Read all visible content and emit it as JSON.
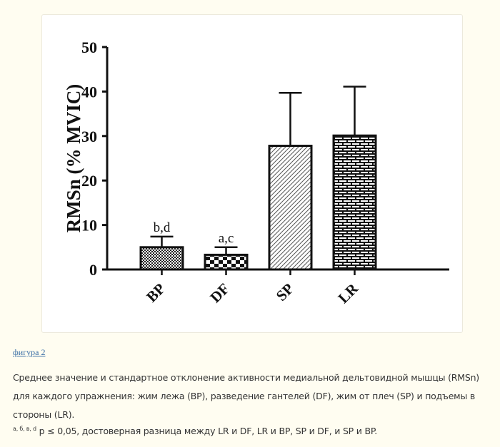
{
  "chart_data": {
    "type": "bar",
    "categories": [
      "BP",
      "DF",
      "SP",
      "LR"
    ],
    "values": [
      5.0,
      3.3,
      27.8,
      30.1
    ],
    "error_sd": [
      2.4,
      1.7,
      11.9,
      11.0
    ],
    "annotations": [
      "b,d",
      "a,c",
      "",
      ""
    ],
    "ylabel": "RMSn (% MVIC)",
    "xlabel": "",
    "ylim": [
      0,
      50
    ],
    "yticks": [
      0,
      10,
      20,
      30,
      40,
      50
    ],
    "patterns": [
      "dense-dots",
      "checker",
      "diagonal-hatch",
      "brick"
    ],
    "grid": false
  },
  "figure_link": "фигура 2",
  "caption": "Среднее значение и стандартное отклонение активности медиальной дельтовидной мышцы (RMSn) для каждого упражнения: жим лежа (BP), разведение гантелей (DF), жим от плеч (SP) и подъемы в стороны (LR).",
  "note_sup": "a, б, в, d",
  "note_text": " p ≤ 0,05, достоверная разница между LR и DF, LR и BP, SP и DF, и SP и BP."
}
